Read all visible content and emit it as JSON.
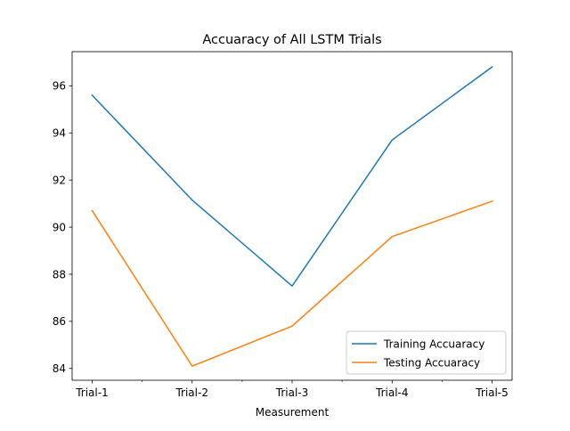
{
  "chart_data": {
    "type": "line",
    "title": "Accuaracy of All LSTM Trials",
    "xlabel": "Measurement",
    "ylabel": "",
    "categories": [
      "Trial-1",
      "Trial-2",
      "Trial-3",
      "Trial-4",
      "Trial-5"
    ],
    "series": [
      {
        "name": "Training Accuaracy",
        "color": "#1f77b4",
        "values": [
          95.6,
          91.15,
          87.5,
          93.7,
          96.8
        ]
      },
      {
        "name": "Testing Accuaracy",
        "color": "#ff7f0e",
        "values": [
          90.7,
          84.1,
          85.8,
          89.6,
          91.1
        ]
      }
    ],
    "ylim": [
      83.5,
      97.45
    ],
    "yticks": [
      84,
      86,
      88,
      90,
      92,
      94,
      96
    ],
    "minor_xticks": [
      0.5,
      1.5,
      2.5,
      3.5
    ],
    "grid": false,
    "legend_position": "lower-right"
  }
}
